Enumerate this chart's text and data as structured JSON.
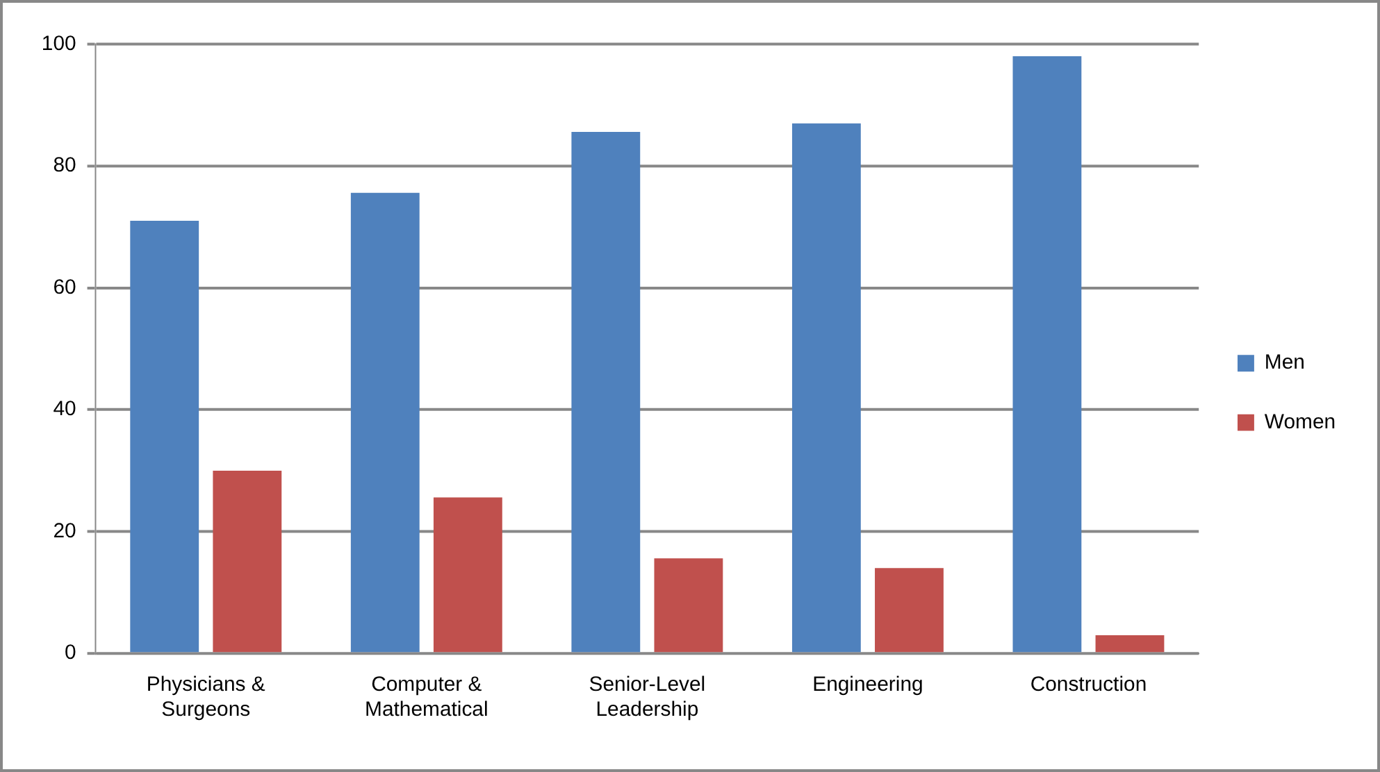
{
  "chart_data": {
    "type": "bar",
    "categories": [
      "Physicians & Surgeons",
      "Computer & Mathematical",
      "Senior-Level Leadership",
      "Engineering",
      "Construction"
    ],
    "series": [
      {
        "name": "Men",
        "color": "#4f81bd",
        "values": [
          71,
          75.6,
          85.6,
          87,
          98
        ]
      },
      {
        "name": "Women",
        "color": "#c0504d",
        "values": [
          30,
          25.6,
          15.6,
          14,
          3
        ]
      }
    ],
    "ylim": [
      0,
      100
    ],
    "yticks": [
      0,
      20,
      40,
      60,
      80,
      100
    ],
    "grid": "y",
    "legend": "right"
  }
}
